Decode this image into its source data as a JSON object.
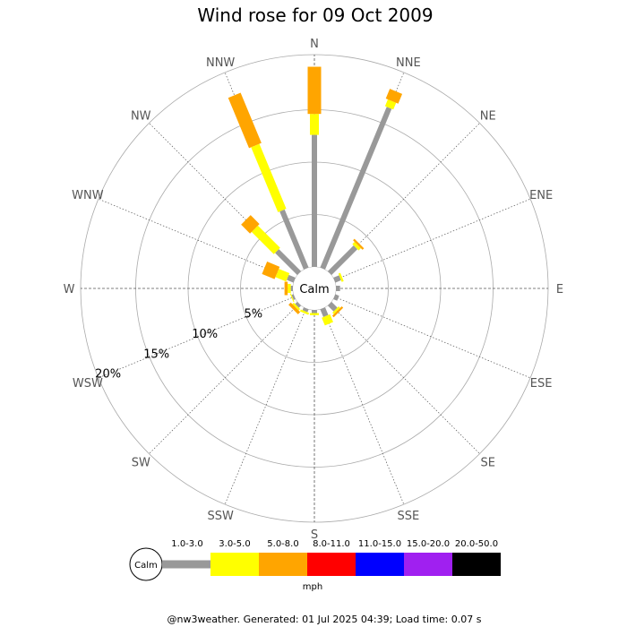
{
  "chart_data": {
    "type": "wind-rose",
    "title": "Wind rose for 09 Oct 2009",
    "directions": [
      "N",
      "NNE",
      "NE",
      "ENE",
      "E",
      "ESE",
      "SE",
      "SSE",
      "S",
      "SSW",
      "SW",
      "WSW",
      "W",
      "WNW",
      "NW",
      "NNW"
    ],
    "radial_ticks": [
      "5%",
      "10%",
      "15%",
      "20%"
    ],
    "radial_max": 20,
    "calm_label": "Calm",
    "unit_label": "mph",
    "speed_bins": [
      {
        "label": "1.0-3.0",
        "color": "#999999"
      },
      {
        "label": "3.0-5.0",
        "color": "#ffff00"
      },
      {
        "label": "5.0-8.0",
        "color": "#ffa500"
      },
      {
        "label": "8.0-11.0",
        "color": "#ff0000"
      },
      {
        "label": "11.0-15.0",
        "color": "#0000ff"
      },
      {
        "label": "15.0-20.0",
        "color": "#a020f0"
      },
      {
        "label": "20.0-50.0",
        "color": "#000000"
      }
    ],
    "series": [
      {
        "direction": "N",
        "values": [
          12.6,
          2.0,
          4.5,
          0,
          0,
          0,
          0
        ]
      },
      {
        "direction": "NNE",
        "values": [
          16.6,
          0.7,
          1.0,
          0,
          0,
          0,
          0
        ]
      },
      {
        "direction": "NE",
        "values": [
          3.5,
          0.3,
          0.2,
          0,
          0,
          0,
          0
        ]
      },
      {
        "direction": "ENE",
        "values": [
          0.6,
          0.2,
          0,
          0,
          0,
          0,
          0
        ]
      },
      {
        "direction": "E",
        "values": [
          0.4,
          0,
          0,
          0,
          0,
          0,
          0
        ]
      },
      {
        "direction": "ESE",
        "values": [
          0.4,
          0,
          0,
          0,
          0,
          0,
          0
        ]
      },
      {
        "direction": "SE",
        "values": [
          0.8,
          0.2,
          0.2,
          0,
          0,
          0,
          0
        ]
      },
      {
        "direction": "SSE",
        "values": [
          0.8,
          0.8,
          0,
          0,
          0,
          0,
          0
        ]
      },
      {
        "direction": "S",
        "values": [
          0.3,
          0.2,
          0,
          0,
          0,
          0,
          0
        ]
      },
      {
        "direction": "SSW",
        "values": [
          0.3,
          0.2,
          0,
          0,
          0,
          0,
          0
        ]
      },
      {
        "direction": "SW",
        "values": [
          0.3,
          0.2,
          0.3,
          0,
          0,
          0,
          0
        ]
      },
      {
        "direction": "WSW",
        "values": [
          0.2,
          0.1,
          0,
          0,
          0,
          0,
          0
        ]
      },
      {
        "direction": "W",
        "values": [
          0.2,
          0.3,
          0.3,
          0,
          0,
          0,
          0
        ]
      },
      {
        "direction": "WNW",
        "values": [
          0.7,
          1.1,
          1.3,
          0,
          0,
          0,
          0
        ]
      },
      {
        "direction": "NW",
        "values": [
          3.0,
          3.0,
          1.2,
          0,
          0,
          0,
          0
        ]
      },
      {
        "direction": "NNW",
        "values": [
          6.0,
          6.7,
          5.2,
          0,
          0,
          0,
          0
        ]
      }
    ]
  },
  "footer": "@nw3weather. Generated: 01 Jul 2025 04:39; Load time: 0.07 s"
}
